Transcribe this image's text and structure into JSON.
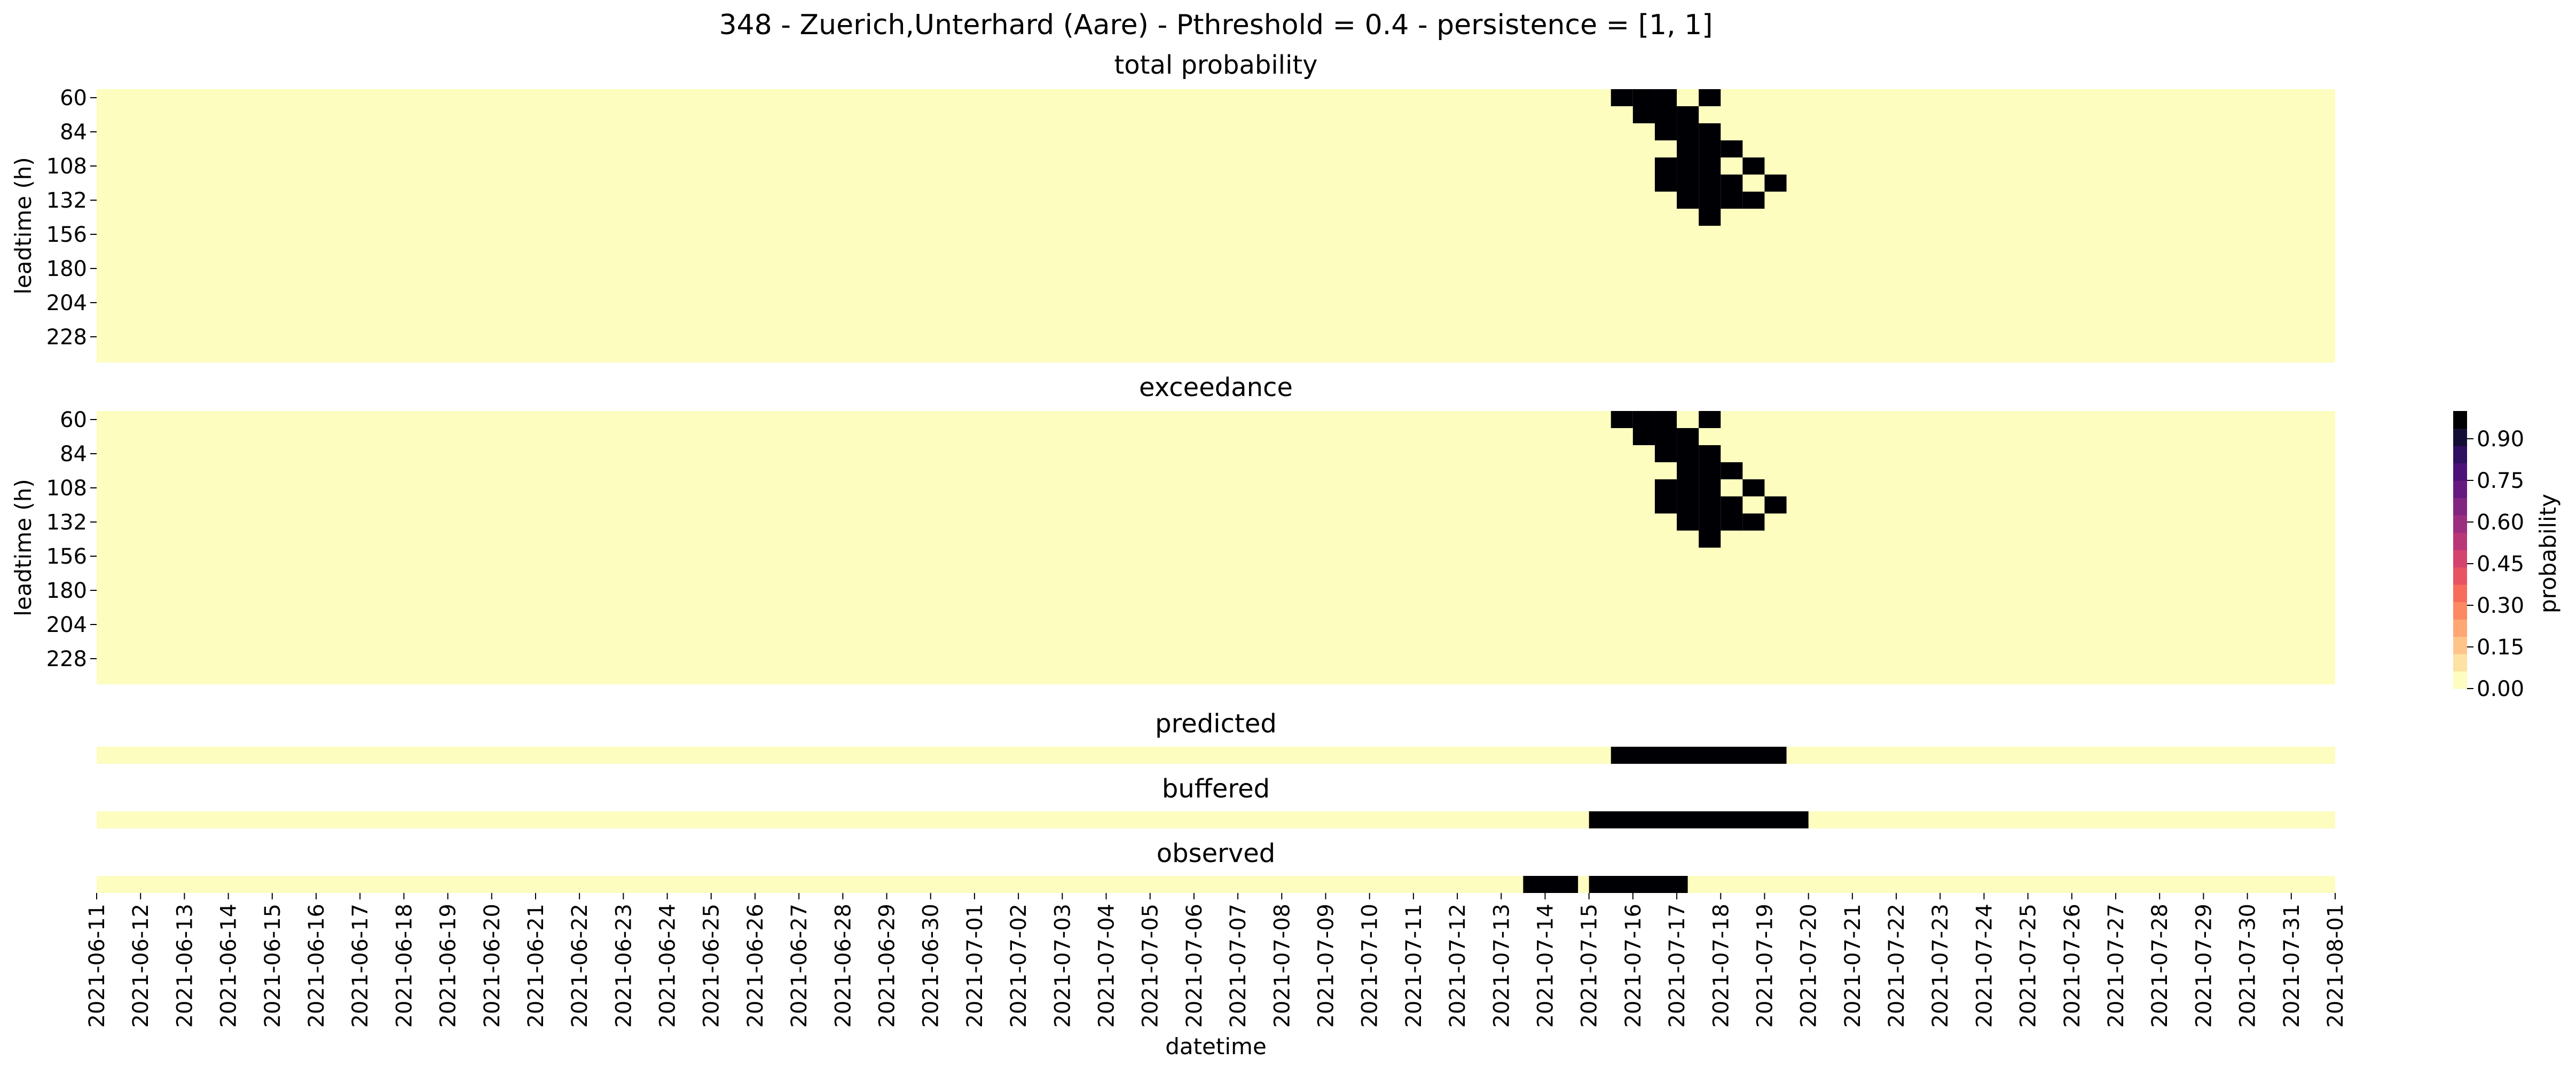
{
  "figure": {
    "title": "348 - Zuerich,Unterhard (Aare) - Pthreshold = 0.4 - persistence = [1, 1]",
    "xlabel": "datetime",
    "ylabel": "leadtime (h)"
  },
  "colors": {
    "low": "#fcfdbf",
    "high": "#000004",
    "cmap": [
      "#fcfdbf",
      "#fde2a3",
      "#fec488",
      "#fea772",
      "#fc8961",
      "#f66d5c",
      "#e85362",
      "#d3436e",
      "#b73779",
      "#9c2e7f",
      "#812581",
      "#661a80",
      "#4b1178",
      "#2f0f60",
      "#140e36",
      "#000004"
    ]
  },
  "colorbar": {
    "label": "probability",
    "ticks": [
      "0.00",
      "0.15",
      "0.30",
      "0.45",
      "0.60",
      "0.75",
      "0.90"
    ]
  },
  "chart_data": [
    {
      "type": "heatmap",
      "title": "total probability",
      "ylabel": "leadtime (h)",
      "x_dates": [
        "2021-06-11",
        "2021-06-12",
        "2021-06-13",
        "2021-06-14",
        "2021-06-15",
        "2021-06-16",
        "2021-06-17",
        "2021-06-18",
        "2021-06-19",
        "2021-06-20",
        "2021-06-21",
        "2021-06-22",
        "2021-06-23",
        "2021-06-24",
        "2021-06-25",
        "2021-06-26",
        "2021-06-27",
        "2021-06-28",
        "2021-06-29",
        "2021-06-30",
        "2021-07-01",
        "2021-07-02",
        "2021-07-03",
        "2021-07-04",
        "2021-07-05",
        "2021-07-06",
        "2021-07-07",
        "2021-07-08",
        "2021-07-09",
        "2021-07-10",
        "2021-07-11",
        "2021-07-12",
        "2021-07-13",
        "2021-07-14",
        "2021-07-15",
        "2021-07-16",
        "2021-07-17",
        "2021-07-18",
        "2021-07-19",
        "2021-07-20",
        "2021-07-21",
        "2021-07-22",
        "2021-07-23",
        "2021-07-24",
        "2021-07-25",
        "2021-07-26",
        "2021-07-27",
        "2021-07-28",
        "2021-07-29",
        "2021-07-30",
        "2021-07-31",
        "2021-08-01"
      ],
      "ytick_labels": [
        "60",
        "84",
        "108",
        "132",
        "156",
        "180",
        "204",
        "228"
      ],
      "leadtimes": [
        60,
        72,
        84,
        96,
        108,
        120,
        132,
        144,
        156,
        168,
        180,
        192,
        204,
        216,
        228,
        240
      ],
      "x_start": "2021-06-11 00:00",
      "x_end": "2021-08-01 00:00",
      "x_step_hours": 12,
      "vmin": 0,
      "vmax": 1,
      "cells": [
        [
          "2021-07-15 12:00",
          60
        ],
        [
          "2021-07-16 00:00",
          60
        ],
        [
          "2021-07-16 12:00",
          60
        ],
        [
          "2021-07-17 12:00",
          60
        ],
        [
          "2021-07-16 00:00",
          72
        ],
        [
          "2021-07-16 12:00",
          72
        ],
        [
          "2021-07-17 00:00",
          72
        ],
        [
          "2021-07-16 12:00",
          84
        ],
        [
          "2021-07-17 00:00",
          84
        ],
        [
          "2021-07-17 12:00",
          84
        ],
        [
          "2021-07-17 00:00",
          96
        ],
        [
          "2021-07-17 12:00",
          96
        ],
        [
          "2021-07-18 00:00",
          96
        ],
        [
          "2021-07-16 12:00",
          108
        ],
        [
          "2021-07-17 00:00",
          108
        ],
        [
          "2021-07-17 12:00",
          108
        ],
        [
          "2021-07-18 12:00",
          108
        ],
        [
          "2021-07-16 12:00",
          120
        ],
        [
          "2021-07-17 00:00",
          120
        ],
        [
          "2021-07-17 12:00",
          120
        ],
        [
          "2021-07-18 00:00",
          120
        ],
        [
          "2021-07-19 00:00",
          120
        ],
        [
          "2021-07-17 00:00",
          132
        ],
        [
          "2021-07-17 12:00",
          132
        ],
        [
          "2021-07-18 00:00",
          132
        ],
        [
          "2021-07-18 12:00",
          132
        ],
        [
          "2021-07-17 12:00",
          144
        ]
      ]
    },
    {
      "type": "heatmap",
      "title": "exceedance",
      "ylabel": "leadtime (h)",
      "ytick_labels": [
        "60",
        "84",
        "108",
        "132",
        "156",
        "180",
        "204",
        "228"
      ],
      "leadtimes": [
        60,
        72,
        84,
        96,
        108,
        120,
        132,
        144,
        156,
        168,
        180,
        192,
        204,
        216,
        228,
        240
      ],
      "x_start": "2021-06-11 00:00",
      "x_end": "2021-08-01 00:00",
      "x_step_hours": 12,
      "vmin": 0,
      "vmax": 1,
      "cells": [
        [
          "2021-07-15 12:00",
          60
        ],
        [
          "2021-07-16 00:00",
          60
        ],
        [
          "2021-07-16 12:00",
          60
        ],
        [
          "2021-07-17 12:00",
          60
        ],
        [
          "2021-07-16 00:00",
          72
        ],
        [
          "2021-07-16 12:00",
          72
        ],
        [
          "2021-07-17 00:00",
          72
        ],
        [
          "2021-07-16 12:00",
          84
        ],
        [
          "2021-07-17 00:00",
          84
        ],
        [
          "2021-07-17 12:00",
          84
        ],
        [
          "2021-07-17 00:00",
          96
        ],
        [
          "2021-07-17 12:00",
          96
        ],
        [
          "2021-07-18 00:00",
          96
        ],
        [
          "2021-07-16 12:00",
          108
        ],
        [
          "2021-07-17 00:00",
          108
        ],
        [
          "2021-07-17 12:00",
          108
        ],
        [
          "2021-07-18 12:00",
          108
        ],
        [
          "2021-07-16 12:00",
          120
        ],
        [
          "2021-07-17 00:00",
          120
        ],
        [
          "2021-07-17 12:00",
          120
        ],
        [
          "2021-07-18 00:00",
          120
        ],
        [
          "2021-07-19 00:00",
          120
        ],
        [
          "2021-07-17 00:00",
          132
        ],
        [
          "2021-07-17 12:00",
          132
        ],
        [
          "2021-07-18 00:00",
          132
        ],
        [
          "2021-07-18 12:00",
          132
        ],
        [
          "2021-07-17 12:00",
          144
        ]
      ]
    },
    {
      "type": "heatmap",
      "title": "predicted",
      "x_start": "2021-06-11 00:00",
      "x_end": "2021-08-01 00:00",
      "events": [
        [
          "2021-07-15 12:00",
          "2021-07-19 12:00"
        ]
      ]
    },
    {
      "type": "heatmap",
      "title": "buffered",
      "x_start": "2021-06-11 00:00",
      "x_end": "2021-08-01 00:00",
      "events": [
        [
          "2021-07-15 00:00",
          "2021-07-20 00:00"
        ]
      ]
    },
    {
      "type": "heatmap",
      "title": "observed",
      "x_start": "2021-06-11 00:00",
      "x_end": "2021-08-01 00:00",
      "events": [
        [
          "2021-07-13 12:00",
          "2021-07-14 18:00"
        ],
        [
          "2021-07-15 00:00",
          "2021-07-17 06:00"
        ]
      ]
    }
  ]
}
